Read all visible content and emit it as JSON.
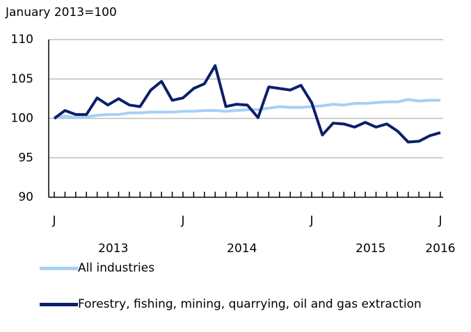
{
  "chart_data": {
    "type": "line",
    "axis_label": "January 2013=100",
    "categories": [
      "J",
      null,
      null,
      null,
      null,
      null,
      null,
      null,
      null,
      null,
      null,
      null,
      "J",
      null,
      null,
      null,
      null,
      null,
      null,
      null,
      null,
      null,
      null,
      null,
      "J",
      null,
      null,
      null,
      null,
      null,
      null,
      null,
      null,
      null,
      null,
      null,
      "J"
    ],
    "year_labels": [
      "2013",
      "2014",
      "2015",
      "2016"
    ],
    "series": [
      {
        "name": "All industries",
        "color": "#a6cff5",
        "values": [
          100,
          100.3,
          100.1,
          100.2,
          100.4,
          100.5,
          100.5,
          100.7,
          100.7,
          100.8,
          100.8,
          100.8,
          100.9,
          100.9,
          101.0,
          101.0,
          100.9,
          101.0,
          101.1,
          101.1,
          101.3,
          101.5,
          101.4,
          101.4,
          101.5,
          101.6,
          101.8,
          101.7,
          101.9,
          101.9,
          102.0,
          102.1,
          102.1,
          102.4,
          102.2,
          102.3,
          102.3
        ]
      },
      {
        "name": "Forestry, fishing, mining, quarrying, oil and gas extraction",
        "color": "#0b1f6b",
        "values": [
          100,
          101.0,
          100.5,
          100.5,
          102.6,
          101.7,
          102.5,
          101.7,
          101.5,
          103.6,
          104.7,
          102.3,
          102.6,
          103.8,
          104.4,
          106.7,
          101.5,
          101.8,
          101.7,
          100.1,
          104.0,
          103.8,
          103.6,
          104.2,
          102.0,
          97.9,
          99.4,
          99.3,
          98.9,
          99.5,
          98.9,
          99.3,
          98.4,
          97.0,
          97.1,
          97.8,
          98.2
        ]
      }
    ],
    "ylim": [
      90,
      110
    ],
    "yticks": [
      90,
      95,
      100,
      105,
      110
    ],
    "grid": true
  }
}
